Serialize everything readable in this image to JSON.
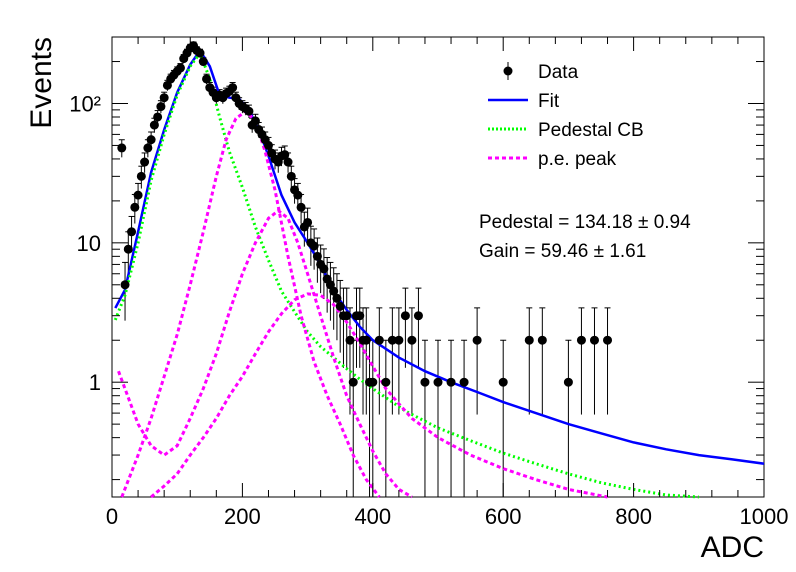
{
  "chart_data": {
    "type": "scatter",
    "xlabel": "ADC",
    "ylabel": "Events",
    "xlim": [
      0,
      1000
    ],
    "ylim": [
      0.15,
      300
    ],
    "y_scale": "log",
    "grid": false,
    "legend_position": "top-right",
    "x_ticks": [
      0,
      200,
      400,
      600,
      800,
      1000
    ],
    "y_ticks": [
      {
        "value": 1,
        "label": "1"
      },
      {
        "value": 10,
        "label": "10"
      },
      {
        "value": 100,
        "label": "10²"
      }
    ],
    "legend": [
      {
        "key": "data",
        "label": "Data",
        "color": "#000000",
        "style": "marker"
      },
      {
        "key": "fit",
        "label": "Fit",
        "color": "#0000ff",
        "style": "solid"
      },
      {
        "key": "pedestal",
        "label": "Pedestal CB",
        "color": "#00ff00",
        "style": "dotted"
      },
      {
        "key": "pe",
        "label": "p.e. peak",
        "color": "#ff00ff",
        "style": "dashed"
      }
    ],
    "annotations": [
      "Pedestal = 134.18 ± 0.94",
      "Gain = 59.46 ± 1.61"
    ],
    "series": [
      {
        "key": "data",
        "kind": "points",
        "color": "#000000",
        "x": [
          15,
          20,
          25,
          30,
          35,
          40,
          45,
          50,
          55,
          60,
          65,
          70,
          75,
          80,
          85,
          90,
          95,
          100,
          105,
          110,
          115,
          120,
          125,
          130,
          135,
          140,
          145,
          150,
          155,
          160,
          165,
          170,
          175,
          180,
          185,
          190,
          195,
          200,
          205,
          210,
          215,
          220,
          225,
          230,
          235,
          240,
          245,
          250,
          255,
          260,
          265,
          270,
          275,
          280,
          285,
          290,
          295,
          300,
          305,
          310,
          315,
          320,
          325,
          330,
          335,
          340,
          345,
          350,
          355,
          360,
          365,
          370,
          375,
          380,
          385,
          390,
          395,
          400,
          410,
          420,
          430,
          440,
          450,
          460,
          470,
          480,
          500,
          520,
          540,
          560,
          600,
          640,
          660,
          700,
          720,
          740,
          760
        ],
        "y": [
          48,
          5,
          9,
          12,
          18,
          22,
          30,
          38,
          48,
          55,
          70,
          80,
          95,
          110,
          135,
          150,
          160,
          170,
          180,
          210,
          230,
          250,
          260,
          240,
          230,
          200,
          150,
          130,
          120,
          110,
          115,
          110,
          118,
          122,
          130,
          110,
          100,
          95,
          92,
          88,
          70,
          75,
          65,
          60,
          55,
          50,
          44,
          40,
          38,
          42,
          43,
          38,
          30,
          24,
          22,
          18,
          13,
          14,
          10,
          9.5,
          8,
          7,
          6.5,
          5.5,
          5,
          4.5,
          4,
          3.5,
          3,
          3,
          2,
          1,
          3,
          3,
          2,
          2,
          1,
          1,
          2,
          1,
          2,
          2,
          3,
          2,
          3,
          1,
          1,
          1,
          1,
          2,
          1,
          2,
          2,
          1,
          2,
          2,
          2
        ]
      },
      {
        "key": "fit",
        "kind": "line",
        "color": "#0000ff",
        "x": [
          5,
          20,
          40,
          60,
          80,
          100,
          120,
          135,
          150,
          165,
          180,
          195,
          210,
          225,
          240,
          260,
          280,
          300,
          320,
          340,
          360,
          380,
          400,
          440,
          480,
          520,
          560,
          600,
          650,
          700,
          750,
          800,
          850,
          900,
          950,
          1000
        ],
        "y": [
          3.4,
          4.6,
          12,
          32,
          65,
          120,
          190,
          240,
          185,
          115,
          110,
          108,
          90,
          65,
          42,
          22,
          14,
          10,
          7,
          4.5,
          3.3,
          2.5,
          2.0,
          1.5,
          1.2,
          1.0,
          0.85,
          0.72,
          0.6,
          0.5,
          0.43,
          0.37,
          0.33,
          0.3,
          0.28,
          0.26
        ]
      },
      {
        "key": "pedestal",
        "kind": "line",
        "color": "#00ff00",
        "x": [
          5,
          20,
          40,
          60,
          80,
          100,
          120,
          135,
          150,
          165,
          180,
          200,
          220,
          240,
          260,
          280,
          300,
          320,
          340,
          360,
          380,
          400,
          450,
          500,
          550,
          600,
          650,
          700,
          750,
          800,
          850,
          900
        ],
        "y": [
          2.8,
          4.2,
          10,
          28,
          60,
          115,
          185,
          230,
          150,
          80,
          45,
          25,
          13,
          7.5,
          4.5,
          3.2,
          2.3,
          1.8,
          1.5,
          1.25,
          1.05,
          0.9,
          0.62,
          0.47,
          0.38,
          0.31,
          0.26,
          0.22,
          0.19,
          0.17,
          0.155,
          0.145
        ]
      },
      {
        "key": "pe1",
        "kind": "line",
        "color": "#ff00ff",
        "x": [
          15,
          40,
          60,
          80,
          100,
          120,
          140,
          160,
          175,
          190,
          205,
          220,
          235,
          250,
          270,
          290,
          310,
          330,
          350,
          370,
          390,
          410
        ],
        "y": [
          0.15,
          0.3,
          0.55,
          1.1,
          2.2,
          5,
          12,
          30,
          55,
          78,
          88,
          75,
          45,
          24,
          8,
          3,
          1.4,
          0.8,
          0.5,
          0.3,
          0.2,
          0.15
        ]
      },
      {
        "key": "pe2",
        "kind": "line",
        "color": "#ff00ff",
        "x": [
          10,
          40,
          60,
          80,
          100,
          120,
          140,
          160,
          180,
          200,
          220,
          240,
          255,
          270,
          285,
          300,
          320,
          340,
          360,
          380,
          400,
          420,
          440,
          460
        ],
        "y": [
          1.2,
          0.5,
          0.35,
          0.3,
          0.35,
          0.55,
          0.9,
          1.6,
          3.2,
          6,
          10,
          15,
          17,
          15,
          10,
          6,
          3,
          1.5,
          0.8,
          0.5,
          0.32,
          0.22,
          0.17,
          0.15
        ]
      },
      {
        "key": "pe3",
        "kind": "line",
        "color": "#ff00ff",
        "x": [
          60,
          80,
          100,
          120,
          140,
          160,
          180,
          200,
          220,
          240,
          260,
          280,
          300,
          320,
          340,
          360,
          380,
          400,
          420,
          440,
          460,
          500,
          550,
          600,
          650,
          700,
          760
        ],
        "y": [
          0.15,
          0.18,
          0.22,
          0.3,
          0.4,
          0.55,
          0.8,
          1.1,
          1.6,
          2.3,
          3.1,
          3.9,
          4.3,
          4.2,
          3.6,
          2.7,
          1.9,
          1.3,
          0.9,
          0.7,
          0.55,
          0.4,
          0.3,
          0.24,
          0.2,
          0.17,
          0.15
        ]
      }
    ]
  }
}
